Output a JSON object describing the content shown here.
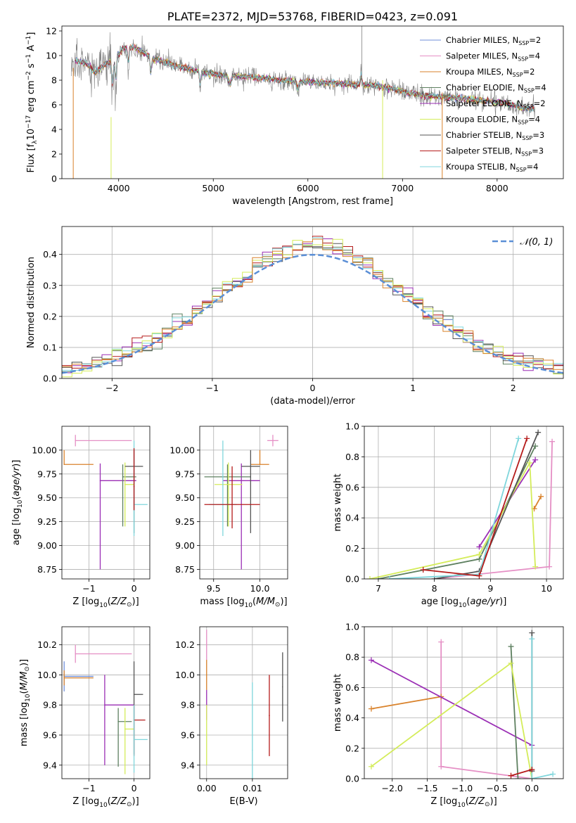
{
  "figure_title": "PLATE=2372, MJD=53768, FIBERID=0423, z=0.091",
  "chart_data": [
    {
      "id": "spectrum",
      "type": "line",
      "title": "PLATE=2372, MJD=53768, FIBERID=0423, z=0.091",
      "xlabel": "wavelength [Angstrom, rest frame]",
      "ylabel": "Flux [f_λ 10^-17 erg cm^-2 s^-1 A^-1]",
      "xlim": [
        3400,
        8700
      ],
      "ylim": [
        0,
        12.4
      ],
      "xticks": [
        4000,
        5000,
        6000,
        7000,
        8000
      ],
      "yticks": [
        0,
        2,
        4,
        6,
        8,
        10,
        12
      ],
      "grid": false,
      "legend_position": "upper-right",
      "data_anchor_points": [
        [
          3550,
          9.6
        ],
        [
          3650,
          9.4
        ],
        [
          3750,
          8.6
        ],
        [
          3850,
          9.3
        ],
        [
          3950,
          9.6
        ],
        [
          4050,
          10.6
        ],
        [
          4150,
          10.7
        ],
        [
          4250,
          10.3
        ],
        [
          4350,
          9.8
        ],
        [
          4500,
          9.4
        ],
        [
          4700,
          9.0
        ],
        [
          4900,
          8.6
        ],
        [
          5100,
          8.4
        ],
        [
          5300,
          8.3
        ],
        [
          5500,
          8.2
        ],
        [
          5700,
          8.0
        ],
        [
          5900,
          7.9
        ],
        [
          6100,
          7.8
        ],
        [
          6300,
          7.8
        ],
        [
          6500,
          7.6
        ],
        [
          6700,
          7.6
        ],
        [
          6900,
          7.3
        ],
        [
          7100,
          6.9
        ],
        [
          7300,
          6.7
        ],
        [
          7500,
          6.6
        ],
        [
          7700,
          6.5
        ],
        [
          7900,
          6.3
        ],
        [
          8100,
          6.1
        ],
        [
          8300,
          5.7
        ]
      ],
      "series": [
        {
          "name": "Chabrier MILES, N_SSP=2",
          "color": "#6f8fd8"
        },
        {
          "name": "Salpeter MILES, N_SSP=4",
          "color": "#e58fc5"
        },
        {
          "name": "Kroupa MILES, N_SSP=2",
          "color": "#d9822b"
        },
        {
          "name": "Chabrier ELODIE, N_SSP=4",
          "color": "#5e8060"
        },
        {
          "name": "Salpeter ELODIE, N_SSP=2",
          "color": "#9b2fb5"
        },
        {
          "name": "Kroupa ELODIE, N_SSP=4",
          "color": "#d4ec5a"
        },
        {
          "name": "Chabrier STELIB, N_SSP=3",
          "color": "#555555"
        },
        {
          "name": "Salpeter STELIB, N_SSP=3",
          "color": "#b51b1b"
        },
        {
          "name": "Kroupa STELIB, N_SSP=4",
          "color": "#7fd6dc"
        }
      ],
      "data_color": "#808080"
    },
    {
      "id": "residuals",
      "type": "line",
      "xlabel": "(data-model)/error",
      "ylabel": "Normed distribution",
      "xlim": [
        -2.5,
        2.5
      ],
      "ylim": [
        0,
        0.49
      ],
      "xticks": [
        -2,
        -1,
        0,
        1,
        2
      ],
      "yticks": [
        0.0,
        0.1,
        0.2,
        0.3,
        0.4
      ],
      "grid": true,
      "legend_position": "upper-right",
      "reference_curve": {
        "name": "𝒩(0, 1)",
        "mean": 0,
        "sigma": 1,
        "color": "#5b8fd6"
      },
      "histogram_bin_width": 0.1,
      "histogram_colors": [
        "#9b2fb5",
        "#5e8060",
        "#555555",
        "#b51b1b",
        "#7fd6dc",
        "#d4ec5a",
        "#d9822b"
      ]
    },
    {
      "id": "age-vs-Z",
      "type": "scatter",
      "xlabel": "Z [log10(Z/Z☉)]",
      "ylabel": "age [log10(age/yr)]",
      "xlim": [
        -1.6,
        0.35
      ],
      "ylim": [
        8.65,
        10.25
      ],
      "xticks": [
        -1,
        0
      ],
      "yticks": [
        8.75,
        9.0,
        9.25,
        9.5,
        9.75,
        10.0
      ],
      "grid": true,
      "points": [
        {
          "x": -1.3,
          "y": 10.1,
          "xerr": [
            0.0,
            1.25
          ],
          "yerr": [
            0.06,
            0.06
          ],
          "color": "#e58fc5"
        },
        {
          "x": -1.55,
          "y": 9.85,
          "xerr": [
            0.0,
            0.65
          ],
          "yerr": [
            0.0,
            0.15
          ],
          "color": "#d9822b"
        },
        {
          "x": -0.75,
          "y": 9.68,
          "xerr": [
            0.0,
            0.8
          ],
          "yerr": [
            0.93,
            0.18
          ],
          "color": "#9b2fb5"
        },
        {
          "x": -0.25,
          "y": 9.72,
          "xerr": [
            0.0,
            0.3
          ],
          "yerr": [
            0.52,
            0.13
          ],
          "color": "#5e8060"
        },
        {
          "x": -0.2,
          "y": 9.64,
          "xerr": [
            0.0,
            0.2
          ],
          "yerr": [
            0.44,
            0.23
          ],
          "color": "#d4ec5a"
        },
        {
          "x": 0.0,
          "y": 9.83,
          "xerr": [
            0.2,
            0.2
          ],
          "yerr": [
            0.7,
            0.17
          ],
          "color": "#555555"
        },
        {
          "x": 0.0,
          "y": 9.43,
          "xerr": [
            0.0,
            0.3
          ],
          "yerr": [
            0.33,
            0.67
          ],
          "color": "#7fd6dc"
        },
        {
          "x": 0.0,
          "y": 9.62,
          "xerr": [
            0.0,
            0.0
          ],
          "yerr": [
            0.25,
            0.4
          ],
          "color": "#b51b1b"
        }
      ]
    },
    {
      "id": "age-vs-mass",
      "type": "scatter",
      "xlabel": "mass [log10(M/M☉)]",
      "ylabel": "",
      "xlim": [
        9.35,
        10.3
      ],
      "ylim": [
        8.65,
        10.25
      ],
      "xticks": [
        9.5,
        10.0
      ],
      "yticks": [
        8.75,
        9.0,
        9.25,
        9.5,
        9.75,
        10.0
      ],
      "grid": true,
      "points": [
        {
          "x": 10.14,
          "y": 10.1,
          "xerr": [
            0.06,
            0.06
          ],
          "yerr": [
            0.06,
            0.06
          ],
          "color": "#e58fc5"
        },
        {
          "x": 10.0,
          "y": 9.85,
          "xerr": [
            0.1,
            0.1
          ],
          "yerr": [
            0.0,
            0.15
          ],
          "color": "#d9822b"
        },
        {
          "x": 9.8,
          "y": 9.68,
          "xerr": [
            0.2,
            0.2
          ],
          "yerr": [
            0.93,
            0.18
          ],
          "color": "#9b2fb5"
        },
        {
          "x": 9.65,
          "y": 9.72,
          "xerr": [
            0.25,
            0.25
          ],
          "yerr": [
            0.52,
            0.13
          ],
          "color": "#5e8060"
        },
        {
          "x": 9.66,
          "y": 9.64,
          "xerr": [
            0.15,
            0.15
          ],
          "yerr": [
            0.44,
            0.23
          ],
          "color": "#d4ec5a"
        },
        {
          "x": 9.9,
          "y": 9.83,
          "xerr": [
            0.1,
            0.1
          ],
          "yerr": [
            0.7,
            0.17
          ],
          "color": "#555555"
        },
        {
          "x": 9.6,
          "y": 9.43,
          "xerr": [
            0.15,
            0.15
          ],
          "yerr": [
            0.33,
            0.67
          ],
          "color": "#7fd6dc"
        },
        {
          "x": 9.7,
          "y": 9.43,
          "xerr": [
            0.3,
            0.3
          ],
          "yerr": [
            0.25,
            0.4
          ],
          "color": "#b51b1b"
        }
      ]
    },
    {
      "id": "mass-weight-vs-age",
      "type": "line",
      "xlabel": "age [log10(age/yr)]",
      "ylabel": "mass weight",
      "xlim": [
        6.75,
        10.3
      ],
      "ylim": [
        0.0,
        1.0
      ],
      "xticks": [
        7,
        8,
        9,
        10
      ],
      "yticks": [
        0.0,
        0.2,
        0.4,
        0.6,
        0.8,
        1.0
      ],
      "grid": true,
      "series": [
        {
          "color": "#e58fc5",
          "points": [
            [
              8.0,
              0.0
            ],
            [
              10.05,
              0.08
            ],
            [
              10.1,
              0.9
            ]
          ]
        },
        {
          "color": "#d9822b",
          "points": [
            [
              9.78,
              0.46
            ],
            [
              9.9,
              0.54
            ]
          ]
        },
        {
          "color": "#9b2fb5",
          "points": [
            [
              8.8,
              0.21
            ],
            [
              9.8,
              0.78
            ]
          ]
        },
        {
          "color": "#5e8060",
          "points": [
            [
              7.0,
              0.0
            ],
            [
              8.8,
              0.13
            ],
            [
              9.8,
              0.87
            ]
          ]
        },
        {
          "color": "#d4ec5a",
          "points": [
            [
              6.85,
              0.0
            ],
            [
              8.8,
              0.16
            ],
            [
              9.7,
              0.76
            ],
            [
              9.8,
              0.08
            ]
          ]
        },
        {
          "color": "#555555",
          "points": [
            [
              8.0,
              0.0
            ],
            [
              8.8,
              0.05
            ],
            [
              9.85,
              0.96
            ]
          ]
        },
        {
          "color": "#7fd6dc",
          "points": [
            [
              7.2,
              0.0
            ],
            [
              8.8,
              0.03
            ],
            [
              9.5,
              0.92
            ]
          ]
        },
        {
          "color": "#b51b1b",
          "points": [
            [
              7.8,
              0.06
            ],
            [
              8.8,
              0.02
            ],
            [
              9.65,
              0.92
            ]
          ]
        }
      ]
    },
    {
      "id": "mass-vs-Z",
      "type": "scatter",
      "xlabel": "Z [log10(Z/Z☉)]",
      "ylabel": "mass [log10(M/M☉)]",
      "xlim": [
        -1.6,
        0.35
      ],
      "ylim": [
        9.31,
        10.32
      ],
      "xticks": [
        -1,
        0
      ],
      "yticks": [
        9.4,
        9.6,
        9.8,
        10.0,
        10.2
      ],
      "grid": true,
      "points": [
        {
          "x": -1.3,
          "y": 10.14,
          "xerr": [
            0.0,
            1.25
          ],
          "yerr": [
            0.06,
            0.06
          ],
          "color": "#e58fc5"
        },
        {
          "x": -1.55,
          "y": 9.99,
          "xerr": [
            0.0,
            0.65
          ],
          "yerr": [
            0.1,
            0.1
          ],
          "color": "#6f8fd8"
        },
        {
          "x": -1.55,
          "y": 9.98,
          "xerr": [
            0.0,
            0.65
          ],
          "yerr": [
            0.05,
            0.05
          ],
          "color": "#d9822b"
        },
        {
          "x": -0.65,
          "y": 9.8,
          "xerr": [
            0.0,
            0.65
          ],
          "yerr": [
            0.4,
            0.2
          ],
          "color": "#9b2fb5"
        },
        {
          "x": -0.35,
          "y": 9.69,
          "xerr": [
            0.0,
            0.3
          ],
          "yerr": [
            0.3,
            0.09
          ],
          "color": "#5e8060"
        },
        {
          "x": -0.2,
          "y": 9.64,
          "xerr": [
            0.0,
            0.2
          ],
          "yerr": [
            0.3,
            0.14
          ],
          "color": "#d4ec5a"
        },
        {
          "x": 0.0,
          "y": 9.87,
          "xerr": [
            0.0,
            0.2
          ],
          "yerr": [
            0.4,
            0.22
          ],
          "color": "#555555"
        },
        {
          "x": 0.0,
          "y": 9.7,
          "xerr": [
            0.0,
            0.25
          ],
          "yerr": [
            0.24,
            0.1
          ],
          "color": "#b51b1b"
        },
        {
          "x": 0.0,
          "y": 9.57,
          "xerr": [
            0.0,
            0.3
          ],
          "yerr": [
            0.22,
            0.23
          ],
          "color": "#7fd6dc"
        }
      ]
    },
    {
      "id": "mass-vs-EBV",
      "type": "scatter",
      "xlabel": "E(B-V)",
      "ylabel": "",
      "xlim": [
        -0.0015,
        0.0177
      ],
      "ylim": [
        9.31,
        10.32
      ],
      "xticks": [
        0.0,
        0.01
      ],
      "xtick_labels": [
        "0.00",
        "0.01"
      ],
      "yticks": [
        9.4,
        9.6,
        9.8,
        10.0,
        10.2
      ],
      "grid": true,
      "points": [
        {
          "x": 0.0,
          "y": 10.2,
          "yerr": [
            0.1,
            0.1
          ],
          "color": "#e58fc5"
        },
        {
          "x": 0.0,
          "y": 10.0,
          "yerr": [
            0.1,
            0.1
          ],
          "color": "#d9822b"
        },
        {
          "x": 0.0,
          "y": 9.8,
          "yerr": [
            0.1,
            0.1
          ],
          "color": "#9b2fb5"
        },
        {
          "x": 0.0,
          "y": 9.6,
          "yerr": [
            0.2,
            0.2
          ],
          "color": "#d4ec5a"
        },
        {
          "x": 0.01,
          "y": 9.5,
          "yerr": [
            0.2,
            0.45
          ],
          "color": "#7fd6dc"
        },
        {
          "x": 0.0137,
          "y": 9.73,
          "yerr": [
            0.27,
            0.27
          ],
          "color": "#b51b1b"
        },
        {
          "x": 0.0166,
          "y": 9.92,
          "yerr": [
            0.23,
            0.23
          ],
          "color": "#555555"
        }
      ]
    },
    {
      "id": "mass-weight-vs-Z",
      "type": "line",
      "xlabel": "Z [log10(Z/Z☉)]",
      "ylabel": "mass weight",
      "xlim": [
        -2.4,
        0.45
      ],
      "ylim": [
        0.0,
        1.0
      ],
      "xticks": [
        -2.0,
        -1.5,
        -1.0,
        -0.5,
        0.0
      ],
      "yticks": [
        0.0,
        0.2,
        0.4,
        0.6,
        0.8,
        1.0
      ],
      "grid": true,
      "series": [
        {
          "color": "#e58fc5",
          "points": [
            [
              -1.3,
              0.9
            ],
            [
              -1.3,
              0.08
            ],
            [
              0.0,
              0.0
            ]
          ]
        },
        {
          "color": "#d9822b",
          "points": [
            [
              -2.3,
              0.46
            ],
            [
              -1.3,
              0.54
            ]
          ]
        },
        {
          "color": "#9b2fb5",
          "points": [
            [
              -2.3,
              0.78
            ],
            [
              0.0,
              0.22
            ]
          ]
        },
        {
          "color": "#5e8060",
          "points": [
            [
              -0.3,
              0.87
            ],
            [
              -0.2,
              0.0
            ]
          ]
        },
        {
          "color": "#d4ec5a",
          "points": [
            [
              -2.3,
              0.08
            ],
            [
              -0.3,
              0.76
            ],
            [
              0.0,
              0.0
            ]
          ]
        },
        {
          "color": "#555555",
          "points": [
            [
              0.0,
              0.96
            ],
            [
              0.0,
              0.05
            ]
          ]
        },
        {
          "color": "#7fd6dc",
          "points": [
            [
              0.0,
              0.92
            ],
            [
              0.0,
              0.0
            ],
            [
              0.3,
              0.03
            ]
          ]
        },
        {
          "color": "#b51b1b",
          "points": [
            [
              -0.3,
              0.02
            ],
            [
              0.0,
              0.06
            ]
          ]
        }
      ]
    }
  ]
}
